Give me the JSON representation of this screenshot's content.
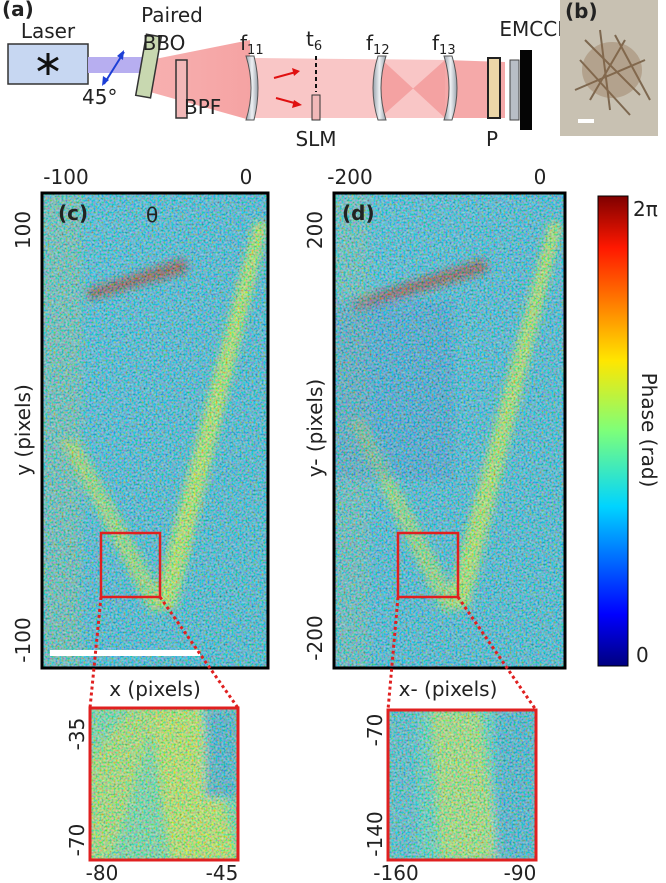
{
  "panel_a": {
    "label": "(a)",
    "laser": "Laser",
    "polarization": "45°",
    "paired": "Paired",
    "bbo": "BBO",
    "bpf": "BPF",
    "lens1": {
      "base": "f",
      "sub": "11"
    },
    "plane": {
      "base": "t",
      "sub": "6"
    },
    "slm": "SLM",
    "lens2": {
      "base": "f",
      "sub": "12"
    },
    "lens3": {
      "base": "f",
      "sub": "13"
    },
    "camera": "EMCCD",
    "polarizer": "P"
  },
  "panel_b": {
    "label": "(b)"
  },
  "panel_c": {
    "label": "(c)",
    "angle": "θ",
    "x_ticks": [
      -100,
      0
    ],
    "y_ticks": [
      100,
      -100
    ],
    "x_label": "x (pixels)",
    "y_label": "y (pixels)",
    "inset_y_ticks": [
      -35,
      -70
    ],
    "inset_x_ticks": [
      -80,
      -45
    ]
  },
  "panel_d": {
    "label": "(d)",
    "x_ticks": [
      -200,
      0
    ],
    "y_ticks": [
      200,
      -200
    ],
    "x_label": "x- (pixels)",
    "y_label": "y- (pixels)",
    "inset_y_ticks": [
      -70,
      -140
    ],
    "inset_x_ticks": [
      -160,
      -90
    ]
  },
  "colorbar": {
    "max": "2π",
    "min": "0",
    "label": "Phase (rad)"
  }
}
